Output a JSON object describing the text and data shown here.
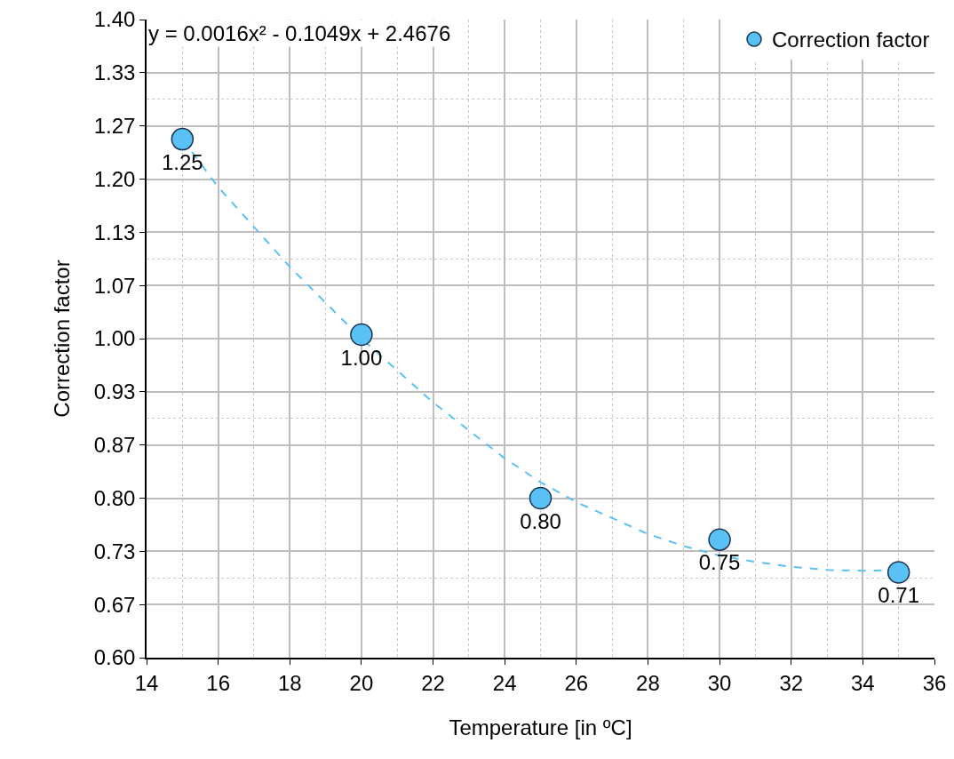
{
  "chart_data": {
    "type": "scatter",
    "xlabel": "Temperature [in ºC]",
    "ylabel": "Correction factor",
    "annotations": [
      "y = 0.0016x² - 0.1049x + 2.4676"
    ],
    "x": [
      15,
      20,
      25,
      30,
      35
    ],
    "series": [
      {
        "name": "Correction factor",
        "color": "#5ac1f7",
        "values": [
          1.25,
          1.005,
          0.8,
          0.748,
          0.707
        ],
        "value_labels": [
          "1.25",
          "1.00",
          "0.80",
          "0.75",
          "0.71"
        ]
      },
      {
        "type": "line",
        "color": "#5ac1f7",
        "line_style": "dashed",
        "marker": "none",
        "x": [
          15,
          16,
          17,
          18,
          19,
          20,
          21,
          22,
          23,
          24,
          25,
          26,
          27,
          28,
          29,
          30,
          31,
          32,
          33,
          34,
          35
        ],
        "values": [
          1.25,
          1.19,
          1.14,
          1.09,
          1.045,
          1.0,
          0.96,
          0.92,
          0.885,
          0.85,
          0.82,
          0.795,
          0.775,
          0.755,
          0.74,
          0.728,
          0.72,
          0.714,
          0.71,
          0.709,
          0.71
        ]
      }
    ],
    "xlim": [
      14,
      36
    ],
    "xticks": [
      14,
      16,
      18,
      20,
      22,
      24,
      26,
      28,
      30,
      32,
      34,
      36
    ],
    "ylim": [
      0.6,
      1.4
    ],
    "yticks": [
      {
        "value": 0.6,
        "label": "0.60"
      },
      {
        "value": 0.6667,
        "label": "0.67"
      },
      {
        "value": 0.7333,
        "label": "0.73"
      },
      {
        "value": 0.8,
        "label": "0.80"
      },
      {
        "value": 0.8667,
        "label": "0.87"
      },
      {
        "value": 0.9333,
        "label": "0.93"
      },
      {
        "value": 1.0,
        "label": "1.00"
      },
      {
        "value": 1.0667,
        "label": "1.07"
      },
      {
        "value": 1.1333,
        "label": "1.13"
      },
      {
        "value": 1.2,
        "label": "1.20"
      },
      {
        "value": 1.2667,
        "label": "1.27"
      },
      {
        "value": 1.3333,
        "label": "1.33"
      },
      {
        "value": 1.4,
        "label": "1.40"
      }
    ],
    "grid": true,
    "legend": "top right",
    "marker": "circle"
  }
}
